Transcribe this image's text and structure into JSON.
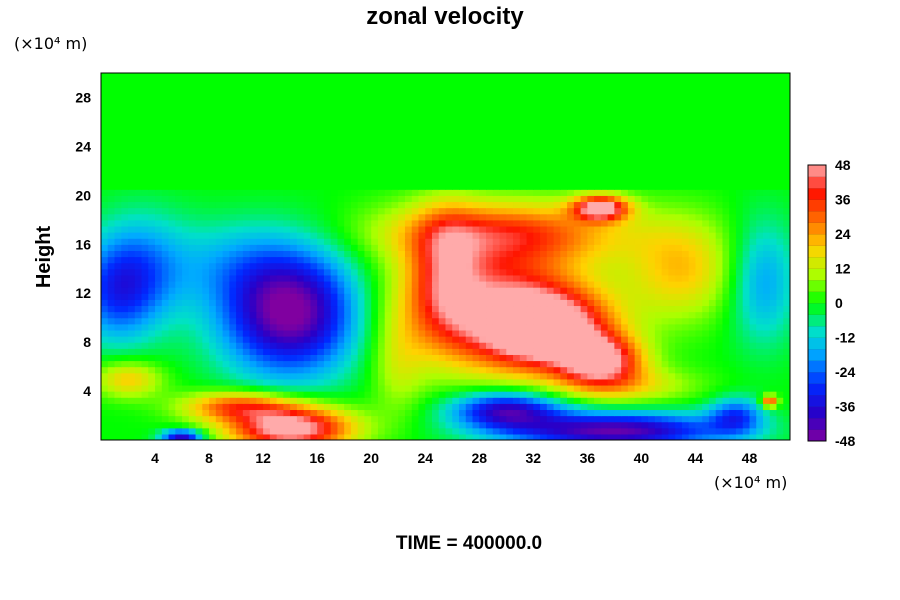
{
  "chart_data": {
    "type": "heatmap",
    "title": "zonal velocity",
    "ylabel": "Height",
    "xlabel": "",
    "x_unit": "(×10⁴ m)",
    "y_unit": "(×10⁴ m)",
    "xlim": [
      0,
      51
    ],
    "ylim": [
      0,
      30
    ],
    "x_ticks": [
      "4",
      "8",
      "12",
      "16",
      "20",
      "24",
      "28",
      "32",
      "36",
      "40",
      "44",
      "48"
    ],
    "x_tick_values": [
      4,
      8,
      12,
      16,
      20,
      24,
      28,
      32,
      36,
      40,
      44,
      48
    ],
    "y_ticks": [
      "4",
      "8",
      "12",
      "16",
      "20",
      "24",
      "28"
    ],
    "y_tick_values": [
      4,
      8,
      12,
      16,
      20,
      24,
      28
    ],
    "colorbar": {
      "range": [
        -48,
        48
      ],
      "step": 4,
      "ticks": [
        "48",
        "36",
        "24",
        "12",
        "0",
        "-12",
        "-24",
        "-36",
        "-48"
      ],
      "tick_values": [
        48,
        36,
        24,
        12,
        0,
        -12,
        -24,
        -36,
        -48
      ]
    },
    "footer": "TIME = 400000.0",
    "background_field_value": 0,
    "features": [
      {
        "x": 14,
        "y": 10.5,
        "rx": 5,
        "ry": 5,
        "value": -50
      },
      {
        "x": 9.5,
        "y": 14.5,
        "rx": 5,
        "ry": 3.5,
        "value": -10
      },
      {
        "x": 3,
        "y": 14,
        "rx": 3.5,
        "ry": 4.5,
        "value": -18
      },
      {
        "x": 1,
        "y": 12,
        "rx": 3,
        "ry": 4,
        "value": -22
      },
      {
        "x": 29,
        "y": 11,
        "rx": 7,
        "ry": 5,
        "value": 42
      },
      {
        "x": 33,
        "y": 9,
        "rx": 4.5,
        "ry": 3,
        "value": 50
      },
      {
        "x": 37,
        "y": 6.5,
        "rx": 3,
        "ry": 2,
        "value": 44
      },
      {
        "x": 30,
        "y": 17,
        "rx": 9,
        "ry": 2.5,
        "value": 30
      },
      {
        "x": 37,
        "y": 19,
        "rx": 2,
        "ry": 1,
        "value": 50
      },
      {
        "x": 25.5,
        "y": 14,
        "rx": 2.5,
        "ry": 5,
        "value": 22
      },
      {
        "x": 43,
        "y": 14,
        "rx": 4,
        "ry": 4,
        "value": 20
      },
      {
        "x": 22,
        "y": 6,
        "rx": 2,
        "ry": 4,
        "value": 10
      },
      {
        "x": 49,
        "y": 13,
        "rx": 2.5,
        "ry": 5,
        "value": -18
      },
      {
        "x": 14,
        "y": 1,
        "rx": 4.5,
        "ry": 1.8,
        "value": 55
      },
      {
        "x": 10,
        "y": 2.8,
        "rx": 4,
        "ry": 1.2,
        "value": 30
      },
      {
        "x": 30,
        "y": 2.5,
        "rx": 4,
        "ry": 1.5,
        "value": -40
      },
      {
        "x": 38,
        "y": 0.8,
        "rx": 8,
        "ry": 1.5,
        "value": -45
      },
      {
        "x": 47,
        "y": 2,
        "rx": 2,
        "ry": 1.5,
        "value": -25
      },
      {
        "x": 2,
        "y": 5,
        "rx": 2.5,
        "ry": 1.5,
        "value": 20
      },
      {
        "x": 39,
        "y": 4.5,
        "rx": 5,
        "ry": 1.5,
        "value": 15
      },
      {
        "x": 6,
        "y": 0.3,
        "rx": 1.5,
        "ry": 0.6,
        "value": -40
      },
      {
        "x": 49.5,
        "y": 3.2,
        "rx": 0.6,
        "ry": 0.5,
        "value": 36
      }
    ]
  }
}
